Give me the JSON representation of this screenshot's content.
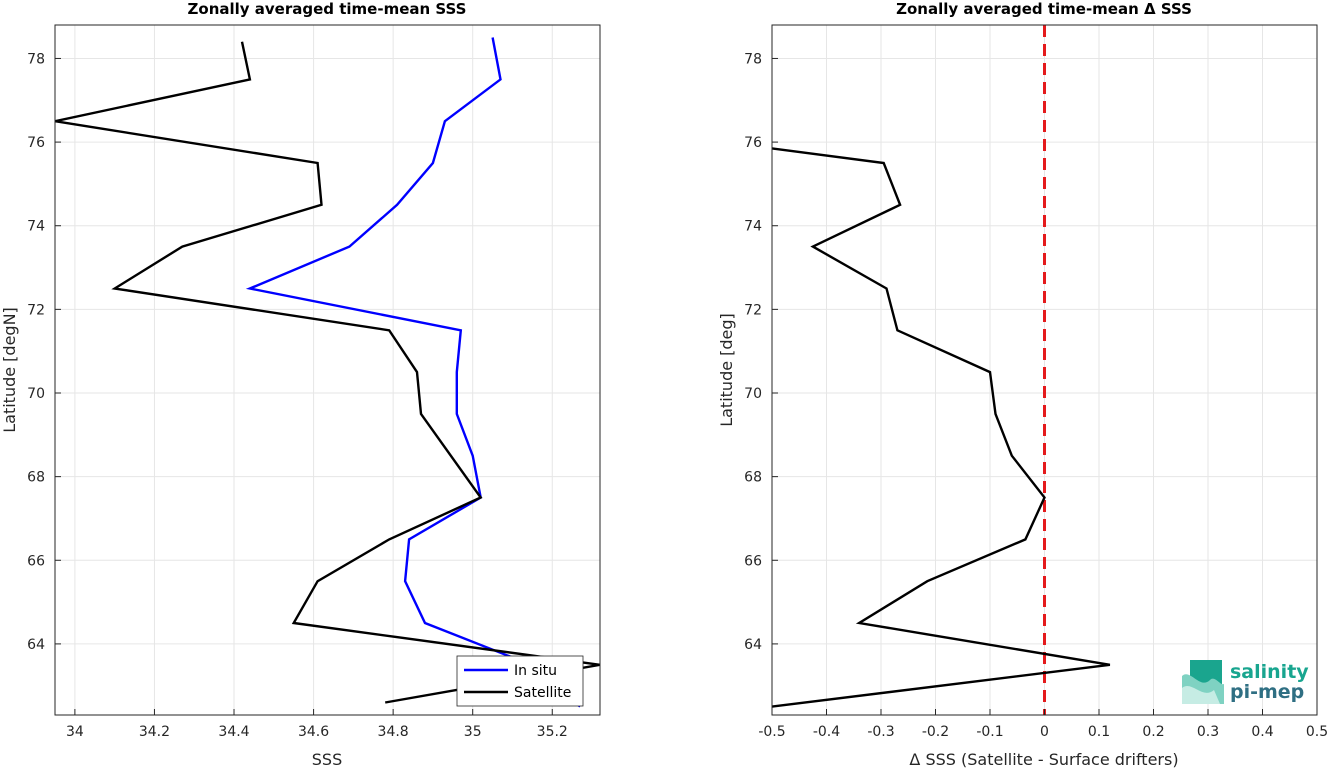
{
  "chart_data": [
    {
      "type": "line",
      "title": "Zonally averaged time-mean SSS",
      "xlabel": "SSS",
      "ylabel": "Latitude [degN]",
      "xlim": [
        33.95,
        35.32
      ],
      "ylim": [
        62.3,
        78.8
      ],
      "xticks": [
        34,
        34.2,
        34.4,
        34.6,
        34.8,
        35,
        35.2
      ],
      "xtick_labels": [
        "34",
        "34.2",
        "34.4",
        "34.6",
        "34.8",
        "35",
        "35.2"
      ],
      "yticks": [
        64,
        66,
        68,
        70,
        72,
        74,
        76,
        78
      ],
      "ytick_labels": [
        "64",
        "66",
        "68",
        "70",
        "72",
        "74",
        "76",
        "78"
      ],
      "grid": true,
      "legend": "bottom-right",
      "series": [
        {
          "name": "In situ",
          "color": "#0000ff",
          "points": [
            [
              35.05,
              78.5
            ],
            [
              35.07,
              77.5
            ],
            [
              34.93,
              76.5
            ],
            [
              34.9,
              75.5
            ],
            [
              34.81,
              74.5
            ],
            [
              34.69,
              73.5
            ],
            [
              34.44,
              72.5
            ],
            [
              34.97,
              71.5
            ],
            [
              34.96,
              70.5
            ],
            [
              34.96,
              69.5
            ],
            [
              35.0,
              68.5
            ],
            [
              35.02,
              67.5
            ],
            [
              34.84,
              66.5
            ],
            [
              34.83,
              65.5
            ],
            [
              34.88,
              64.5
            ],
            [
              35.12,
              63.6
            ],
            [
              35.27,
              62.5
            ]
          ]
        },
        {
          "name": "Satellite",
          "color": "#000000",
          "points": [
            [
              34.42,
              78.4
            ],
            [
              34.44,
              77.5
            ],
            [
              33.95,
              76.5
            ],
            [
              34.61,
              75.5
            ],
            [
              34.62,
              74.5
            ],
            [
              34.27,
              73.5
            ],
            [
              34.1,
              72.5
            ],
            [
              34.79,
              71.5
            ],
            [
              34.86,
              70.5
            ],
            [
              34.87,
              69.5
            ],
            [
              35.02,
              67.5
            ],
            [
              34.79,
              66.5
            ],
            [
              34.61,
              65.5
            ],
            [
              34.55,
              64.5
            ],
            [
              35.32,
              63.5
            ],
            [
              34.78,
              62.6
            ]
          ]
        }
      ]
    },
    {
      "type": "line",
      "title": "Zonally averaged time-mean Δ SSS",
      "xlabel": "Δ SSS (Satellite - Surface drifters)",
      "ylabel": "Latitude [deg]",
      "xlim": [
        -0.5,
        0.5
      ],
      "ylim": [
        62.3,
        78.8
      ],
      "xticks": [
        -0.5,
        -0.4,
        -0.3,
        -0.2,
        -0.1,
        0,
        0.1,
        0.2,
        0.3,
        0.4,
        0.5
      ],
      "xtick_labels": [
        "-0.5",
        "-0.4",
        "-0.3",
        "-0.2",
        "-0.1",
        "0",
        "0.1",
        "0.2",
        "0.3",
        "0.4",
        "0.5"
      ],
      "yticks": [
        64,
        66,
        68,
        70,
        72,
        74,
        76,
        78
      ],
      "ytick_labels": [
        "64",
        "66",
        "68",
        "70",
        "72",
        "74",
        "76",
        "78"
      ],
      "grid": true,
      "reference_line": {
        "x": 0,
        "color": "#e41a1c",
        "style": "dashed"
      },
      "series": [
        {
          "color": "#000000",
          "points": [
            [
              -0.5,
              75.85
            ],
            [
              -0.295,
              75.5
            ],
            [
              -0.265,
              74.5
            ],
            [
              -0.425,
              73.5
            ],
            [
              -0.29,
              72.5
            ],
            [
              -0.27,
              71.5
            ],
            [
              -0.1,
              70.5
            ],
            [
              -0.09,
              69.5
            ],
            [
              -0.06,
              68.5
            ],
            [
              0,
              67.5
            ],
            [
              -0.035,
              66.5
            ],
            [
              -0.215,
              65.5
            ],
            [
              -0.34,
              64.5
            ],
            [
              0.12,
              63.5
            ],
            [
              -0.5,
              62.5
            ]
          ]
        }
      ]
    }
  ],
  "logo": {
    "line1": "salinity",
    "line2": "pi-mep",
    "color1": "#18a58f",
    "color2": "#2f6f83"
  }
}
